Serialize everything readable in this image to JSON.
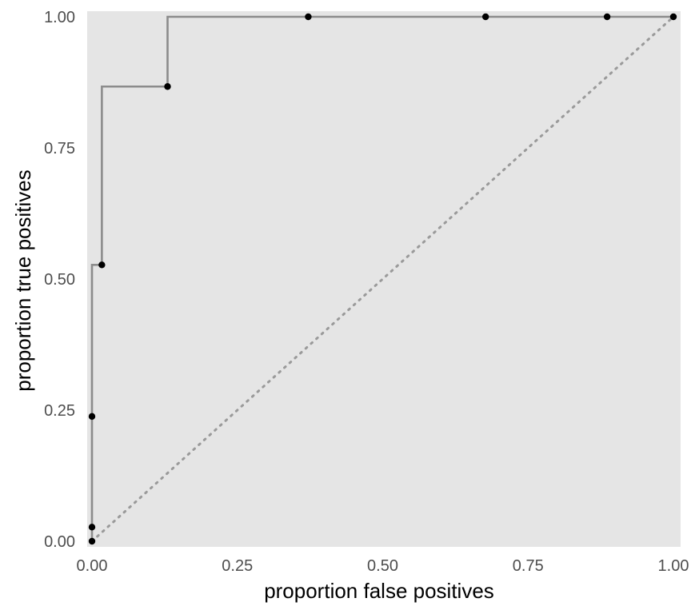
{
  "chart_data": {
    "type": "line",
    "title": "",
    "xlabel": "proportion false positives",
    "ylabel": "proportion true positives",
    "xlim": [
      0,
      1
    ],
    "ylim": [
      0,
      1
    ],
    "grid": false,
    "x_ticks": [
      0,
      0.25,
      0.5,
      0.75,
      1
    ],
    "y_ticks": [
      0,
      0.25,
      0.5,
      0.75,
      1
    ],
    "x_tick_labels": [
      "0.00",
      "0.25",
      "0.50",
      "0.75",
      "1.00"
    ],
    "y_tick_labels": [
      "0.00",
      "0.25",
      "0.50",
      "0.75",
      "1.00"
    ],
    "series": [
      {
        "style": "step",
        "x": [
          0.0,
          0.0,
          0.0,
          0.017,
          0.13,
          0.372,
          0.677,
          0.886,
          1.0
        ],
        "y": [
          0.0,
          0.027,
          0.238,
          0.527,
          0.867,
          1.0,
          1.0,
          1.0,
          1.0
        ]
      }
    ],
    "reference_line": {
      "x": [
        0,
        1
      ],
      "y": [
        0,
        1
      ],
      "style": "dotted"
    },
    "colors": {
      "panel_background": "#e5e5e5",
      "curve": "#8c8c8c",
      "points": "#000000",
      "reference_line": "#9a9a9a"
    }
  }
}
